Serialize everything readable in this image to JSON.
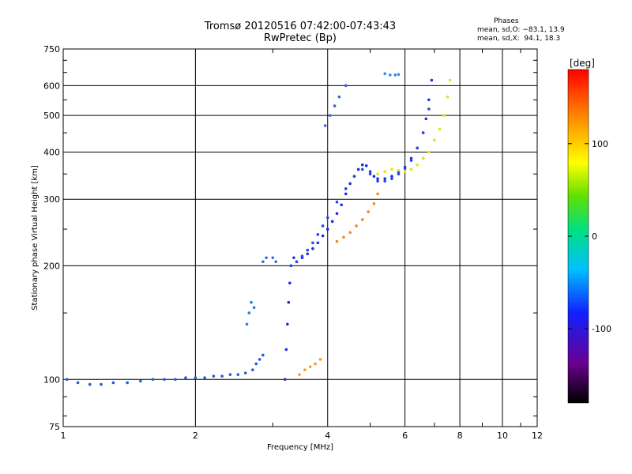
{
  "header": {
    "title_line1": "Tromsø 20120516 07:42:00-07:43:43",
    "title_line2": "RwPretec (Bp)"
  },
  "stats": {
    "heading": "Phases",
    "line_o": "mean, sd,O: −83.1, 13.9",
    "line_x": "mean, sd,X:  94.1, 18.3"
  },
  "chart_data": {
    "type": "scatter",
    "title": "Tromsø 20120516 07:42:00-07:43:43",
    "subtitle": "RwPretec (Bp)",
    "xlabel": "Frequency [MHz]",
    "ylabel": "Stationary phase Virtual Height [km]",
    "xscale": "log",
    "yscale": "log",
    "xlim": [
      1,
      12
    ],
    "ylim": [
      75,
      750
    ],
    "grid": true,
    "x_ticks": [
      1,
      2,
      4,
      6,
      8,
      10,
      12
    ],
    "y_ticks": [
      75,
      100,
      200,
      300,
      400,
      500,
      600,
      750
    ],
    "colorbar": {
      "label": "[deg]",
      "range": [
        -180,
        180
      ],
      "ticks": [
        100,
        0,
        -100
      ],
      "colormap": "rainbow"
    },
    "series": [
      {
        "color": "#1e5ad8",
        "x": [
          1.02,
          1.08,
          1.15,
          1.22,
          1.3,
          1.4,
          1.5,
          1.6,
          1.7,
          1.8,
          1.9,
          2.0,
          2.1,
          2.2,
          2.3,
          2.4,
          2.5,
          2.6,
          2.7,
          2.75,
          2.8,
          2.85
        ],
        "y": [
          100,
          98,
          97,
          97,
          98,
          98,
          99,
          100,
          100,
          100,
          101,
          101,
          101,
          102,
          102,
          103,
          103,
          104,
          106,
          110,
          113,
          116
        ]
      },
      {
        "color": "#2a70e0",
        "x": [
          2.85,
          2.9,
          3.0,
          3.05
        ],
        "y": [
          205,
          210,
          210,
          205
        ]
      },
      {
        "color": "#2f7be6",
        "x": [
          2.62,
          2.65,
          2.68,
          2.72
        ],
        "y": [
          140,
          150,
          160,
          155
        ]
      },
      {
        "color": "#1a2ee0",
        "x": [
          3.2,
          3.22,
          3.24,
          3.26,
          3.28,
          3.3,
          3.35,
          3.4,
          3.5,
          3.6,
          3.7,
          3.8,
          3.9,
          4.0,
          4.1,
          4.2,
          4.3,
          4.4,
          4.5,
          4.6,
          4.7,
          4.8,
          4.9,
          5.0,
          5.1,
          5.2,
          5.4,
          5.6,
          5.8,
          6.0,
          6.2,
          6.4,
          6.6,
          6.7,
          6.8,
          6.9
        ],
        "y": [
          100,
          120,
          140,
          160,
          180,
          200,
          210,
          205,
          210,
          215,
          222,
          230,
          240,
          250,
          262,
          275,
          290,
          310,
          330,
          345,
          360,
          370,
          368,
          355,
          345,
          340,
          340,
          345,
          355,
          365,
          385,
          410,
          450,
          490,
          550,
          620
        ]
      },
      {
        "color": "#2248e8",
        "x": [
          3.3,
          3.4,
          3.5,
          3.6,
          3.7,
          3.8,
          3.9,
          4.0,
          4.2,
          4.4,
          4.6,
          4.8,
          5.0,
          5.2,
          5.4,
          5.6,
          5.8,
          6.0,
          6.2,
          6.4,
          6.6,
          6.8
        ],
        "y": [
          200,
          205,
          212,
          220,
          230,
          242,
          255,
          268,
          295,
          320,
          345,
          360,
          350,
          335,
          335,
          340,
          350,
          362,
          380,
          410,
          450,
          520
        ]
      },
      {
        "color": "#3a5fe8",
        "x": [
          3.95,
          4.05,
          4.15,
          4.25,
          4.4
        ],
        "y": [
          470,
          500,
          530,
          560,
          600
        ]
      },
      {
        "color": "#2a8ae8",
        "x": [
          5.4,
          5.55,
          5.7,
          5.8
        ],
        "y": [
          645,
          640,
          640,
          642
        ]
      },
      {
        "color": "#f08a1c",
        "x": [
          4.2,
          4.35,
          4.5,
          4.65,
          4.8,
          4.95,
          5.1,
          5.2
        ],
        "y": [
          232,
          238,
          245,
          255,
          265,
          278,
          292,
          310
        ]
      },
      {
        "color": "#e4e414",
        "x": [
          5.2,
          5.4,
          5.6,
          5.8,
          6.0,
          6.2,
          6.4,
          6.6,
          6.8,
          7.0,
          7.2,
          7.35,
          7.5,
          7.6
        ],
        "y": [
          350,
          355,
          360,
          358,
          355,
          360,
          370,
          385,
          400,
          430,
          460,
          500,
          560,
          620
        ]
      },
      {
        "color": "#f0a020",
        "x": [
          3.45,
          3.55,
          3.65,
          3.75,
          3.85
        ],
        "y": [
          103,
          106,
          108,
          110,
          113
        ]
      }
    ]
  }
}
